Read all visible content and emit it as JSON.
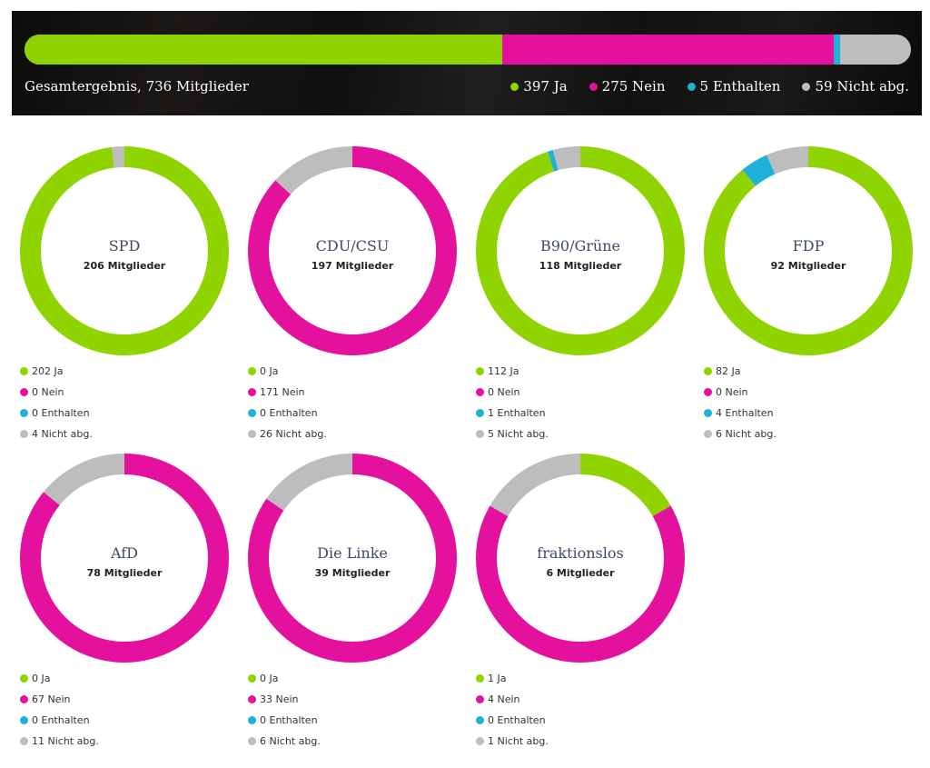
{
  "colors": {
    "ja": "#8fd400",
    "nein": "#e4119e",
    "enthalten": "#20b1d9",
    "nicht": "#bdbdbd"
  },
  "summary": {
    "label": "Gesamtergebnis, 736 Mitglieder",
    "legend": [
      "397 Ja",
      "275 Nein",
      "5 Enthalten",
      "59 Nicht abg."
    ]
  },
  "chart_data": [
    {
      "type": "bar",
      "title": "Gesamtergebnis, 736 Mitglieder",
      "stacked": true,
      "series": [
        {
          "name": "Ja",
          "values": [
            397
          ]
        },
        {
          "name": "Nein",
          "values": [
            275
          ]
        },
        {
          "name": "Enthalten",
          "values": [
            5
          ]
        },
        {
          "name": "Nicht abg.",
          "values": [
            59
          ]
        }
      ]
    },
    {
      "type": "pie",
      "donut": true,
      "title": "SPD",
      "subtitle": "206 Mitglieder",
      "categories": [
        "Ja",
        "Nein",
        "Enthalten",
        "Nicht abg."
      ],
      "values": [
        202,
        0,
        0,
        4
      ],
      "legend": [
        "202 Ja",
        "0 Nein",
        "0 Enthalten",
        "4 Nicht abg."
      ]
    },
    {
      "type": "pie",
      "donut": true,
      "title": "CDU/CSU",
      "subtitle": "197 Mitglieder",
      "categories": [
        "Ja",
        "Nein",
        "Enthalten",
        "Nicht abg."
      ],
      "values": [
        0,
        171,
        0,
        26
      ],
      "legend": [
        "0 Ja",
        "171 Nein",
        "0 Enthalten",
        "26 Nicht abg."
      ]
    },
    {
      "type": "pie",
      "donut": true,
      "title": "B90/Grüne",
      "subtitle": "118 Mitglieder",
      "categories": [
        "Ja",
        "Nein",
        "Enthalten",
        "Nicht abg."
      ],
      "values": [
        112,
        0,
        1,
        5
      ],
      "legend": [
        "112 Ja",
        "0 Nein",
        "1 Enthalten",
        "5 Nicht abg."
      ]
    },
    {
      "type": "pie",
      "donut": true,
      "title": "FDP",
      "subtitle": "92 Mitglieder",
      "categories": [
        "Ja",
        "Nein",
        "Enthalten",
        "Nicht abg."
      ],
      "values": [
        82,
        0,
        4,
        6
      ],
      "legend": [
        "82 Ja",
        "0 Nein",
        "4 Enthalten",
        "6 Nicht abg."
      ]
    },
    {
      "type": "pie",
      "donut": true,
      "title": "AfD",
      "subtitle": "78 Mitglieder",
      "categories": [
        "Ja",
        "Nein",
        "Enthalten",
        "Nicht abg."
      ],
      "values": [
        0,
        67,
        0,
        11
      ],
      "legend": [
        "0 Ja",
        "67 Nein",
        "0 Enthalten",
        "11 Nicht abg."
      ]
    },
    {
      "type": "pie",
      "donut": true,
      "title": "Die Linke",
      "subtitle": "39 Mitglieder",
      "categories": [
        "Ja",
        "Nein",
        "Enthalten",
        "Nicht abg."
      ],
      "values": [
        0,
        33,
        0,
        6
      ],
      "legend": [
        "0 Ja",
        "33 Nein",
        "0 Enthalten",
        "6 Nicht abg."
      ]
    },
    {
      "type": "pie",
      "donut": true,
      "title": "fraktionslos",
      "subtitle": "6 Mitglieder",
      "categories": [
        "Ja",
        "Nein",
        "Enthalten",
        "Nicht abg."
      ],
      "values": [
        1,
        4,
        0,
        1
      ],
      "legend": [
        "1 Ja",
        "4 Nein",
        "0 Enthalten",
        "1 Nicht abg."
      ]
    }
  ]
}
